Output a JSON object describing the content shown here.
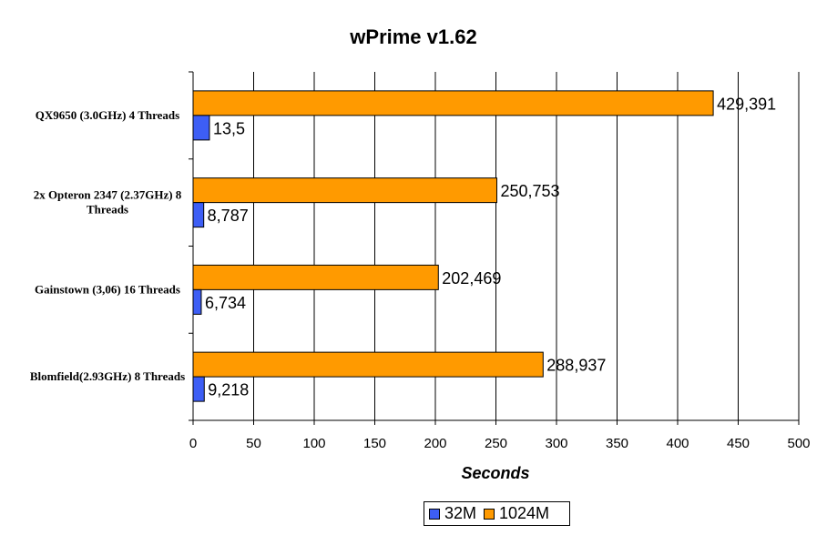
{
  "chart_data": {
    "type": "bar",
    "orientation": "horizontal",
    "title": "wPrime v1.62",
    "xlabel": "Seconds",
    "ylabel": "",
    "xlim": [
      0,
      500
    ],
    "x_ticks": [
      "0",
      "50",
      "100",
      "150",
      "200",
      "250",
      "300",
      "350",
      "400",
      "450",
      "500"
    ],
    "grid": true,
    "legend_position": "bottom",
    "categories": [
      "QX9650 (3.0GHz) 4 Threads",
      "2x Opteron 2347 (2.37GHz) 8 Threads",
      "Gainstown (3,06) 16 Threads",
      "Blomfield(2.93GHz) 8 Threads"
    ],
    "series": [
      {
        "name": "32M",
        "color": "#3d5ef5",
        "values": [
          13.5,
          8.787,
          6.734,
          9.218
        ],
        "labels": [
          "13,5",
          "8,787",
          "6,734",
          "9,218"
        ]
      },
      {
        "name": "1024M",
        "color": "#ff9a00",
        "values": [
          429.391,
          250.753,
          202.469,
          288.937
        ],
        "labels": [
          "429,391",
          "250,753",
          "202,469",
          "288,937"
        ]
      }
    ]
  }
}
